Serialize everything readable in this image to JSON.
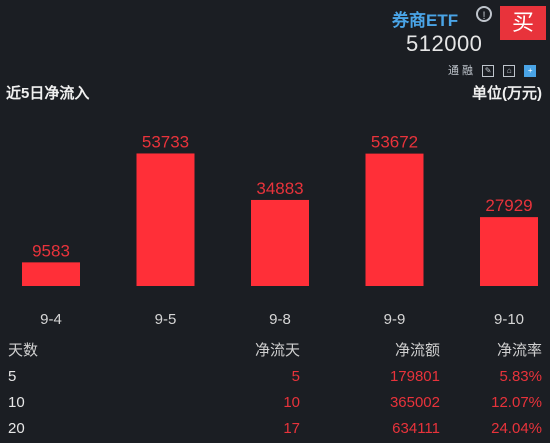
{
  "header": {
    "title": "券商ETF",
    "code": "512000",
    "buy_label": "买",
    "info_glyph": "!",
    "tags": "通 融"
  },
  "section": {
    "left_label": "近5日净流入",
    "right_label": "单位(万元)"
  },
  "colors": {
    "bar": "#ff2f38",
    "up": "#e8333b",
    "accent": "#4aa4e6"
  },
  "chart_data": {
    "type": "bar",
    "title": "近5日净流入",
    "unit": "单位(万元)",
    "categories": [
      "9-4",
      "9-5",
      "9-8",
      "9-9",
      "9-10"
    ],
    "values": [
      9583,
      53733,
      34883,
      53672,
      27929
    ],
    "ylim": [
      0,
      60000
    ]
  },
  "stats": {
    "headers": [
      "天数",
      "净流天",
      "净流额",
      "净流率"
    ],
    "rows": [
      [
        "5",
        "5",
        "179801",
        "5.83%"
      ],
      [
        "10",
        "10",
        "365002",
        "12.07%"
      ],
      [
        "20",
        "17",
        "634111",
        "24.04%"
      ]
    ]
  }
}
